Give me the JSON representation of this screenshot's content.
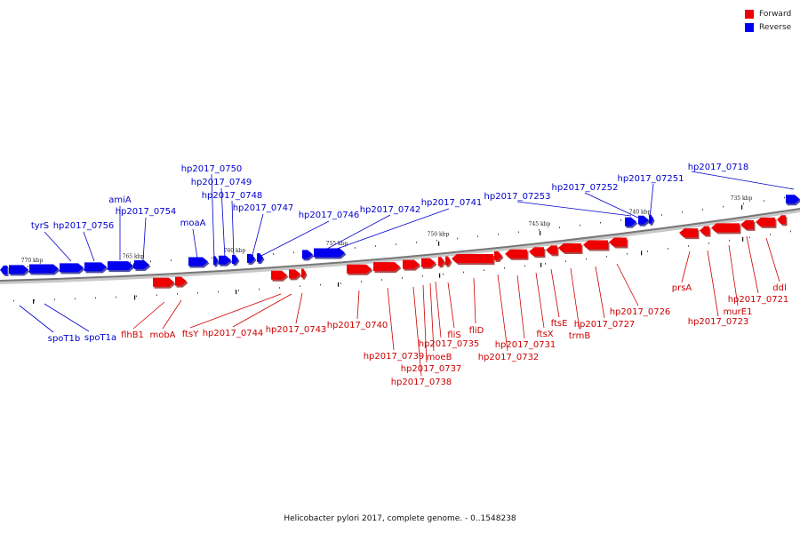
{
  "legend": {
    "forward_label": "Forward",
    "forward_color": "#ee0000",
    "reverse_label": "Reverse",
    "reverse_color": "#0000ee"
  },
  "caption": "Helicobacter pylori 2017, complete genome. - 0..1548238",
  "ticks": [
    "770 kbp",
    "765 kbp",
    "760 kbp",
    "755 kbp",
    "750 kbp",
    "745 kbp",
    "740 kbp",
    "735 kbp"
  ],
  "forward_genes": [
    "prsA",
    "hp2017_0723",
    "murE1",
    "hp2017_0721",
    "ddl",
    "hp2017_0726",
    "hp2017_0727",
    "trmB",
    "ftsE",
    "ftsX",
    "hp2017_0731",
    "hp2017_0732",
    "fliD",
    "fliS",
    "hp2017_0735",
    "moeB",
    "hp2017_0737",
    "hp2017_0738",
    "hp2017_0739",
    "hp2017_0740",
    "hp2017_0743",
    "hp2017_0744",
    "ftsY",
    "mobA",
    "flhB1"
  ],
  "reverse_genes": [
    "hp2017_0718",
    "hp2017_07251",
    "hp2017_07252",
    "hp2017_07253",
    "hp2017_0741",
    "hp2017_0742",
    "hp2017_0746",
    "hp2017_0747",
    "hp2017_0748",
    "hp2017_0749",
    "hp2017_0750",
    "moaA",
    "hp2017_0754",
    "amiA",
    "hp2017_0756",
    "tyrS",
    "spoT1a",
    "spoT1b"
  ]
}
